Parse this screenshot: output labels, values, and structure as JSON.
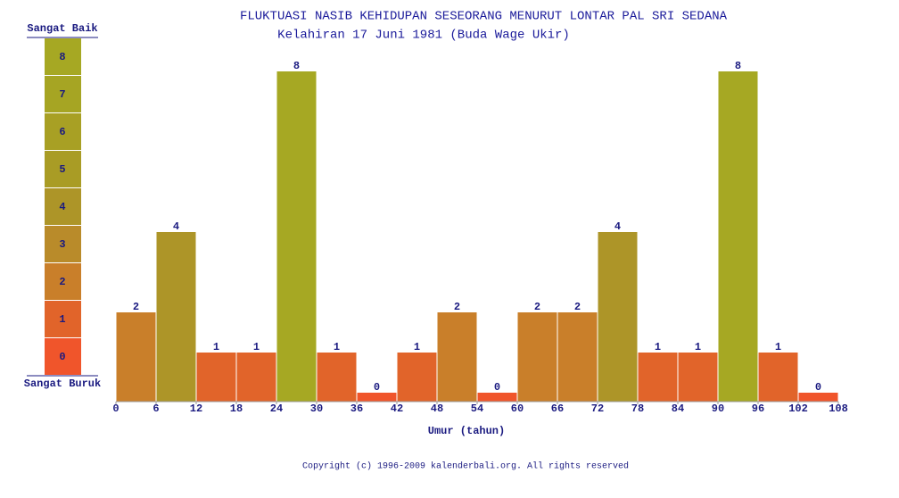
{
  "chart_data": {
    "type": "histogram",
    "title": "FLUKTUASI NASIB KEHIDUPAN SESEORANG MENURUT LONTAR PAL SRI SEDANA",
    "subtitle": "Kelahiran 17 Juni 1981 (Buda Wage Ukir)",
    "x_label": "Umur (tahun)",
    "bins": [
      0,
      6,
      12,
      18,
      24,
      30,
      36,
      42,
      48,
      54,
      60,
      66,
      72,
      78,
      84,
      90,
      96,
      102,
      108
    ],
    "values": [
      2,
      4,
      1,
      1,
      8,
      1,
      0,
      1,
      2,
      0,
      2,
      2,
      4,
      1,
      1,
      8,
      1,
      0
    ],
    "xticks": [
      0,
      6,
      12,
      18,
      24,
      30,
      36,
      42,
      48,
      54,
      60,
      66,
      72,
      78,
      84,
      90,
      96,
      102,
      108
    ],
    "xlim": [
      0,
      108
    ],
    "scale_levels": [
      0,
      1,
      2,
      3,
      4,
      5,
      6,
      7,
      8
    ],
    "level_colors": [
      "#f0552b",
      "#e1642a",
      "#c97f2a",
      "#b98b2a",
      "#ad9528",
      "#a99c25",
      "#a8a024",
      "#a6a523",
      "#a6a823"
    ],
    "scale_top_label": "Sangat Baik",
    "scale_bottom_label": "Sangat Buruk",
    "footer": "Copyright (c) 1996-2009 kalenderbali.org. All rights reserved"
  }
}
